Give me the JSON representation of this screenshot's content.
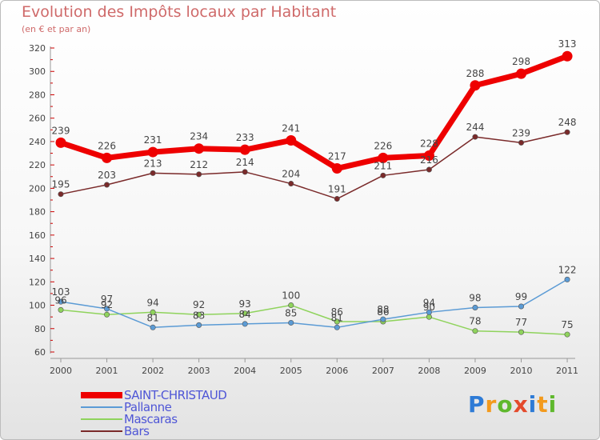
{
  "title": "Evolution des Impôts locaux par Habitant",
  "subtitle": "(en € et par an)",
  "logo": {
    "text": "Proxiti",
    "colors": [
      "#2e7bd6",
      "#f39a1d",
      "#5fb82d",
      "#e44a2c",
      "#2e7bd6",
      "#f39a1d",
      "#5fb82d"
    ]
  },
  "chart_data": {
    "type": "line",
    "x": [
      "2000",
      "2001",
      "2002",
      "2003",
      "2004",
      "2005",
      "2006",
      "2007",
      "2008",
      "2009",
      "2010",
      "2011"
    ],
    "ylim": [
      60,
      320
    ],
    "yticks": [
      60,
      80,
      100,
      120,
      140,
      160,
      180,
      200,
      220,
      240,
      260,
      280,
      300,
      320
    ],
    "grid": false,
    "legend_position": "bottom-left",
    "series": [
      {
        "name": "SAINT-CHRISTAUD",
        "color": "#ee0000",
        "values": [
          239,
          226,
          231,
          234,
          233,
          241,
          217,
          226,
          228,
          288,
          298,
          313
        ]
      },
      {
        "name": "Pallanne",
        "color": "#5b9bd5",
        "values": [
          103,
          97,
          81,
          83,
          84,
          85,
          81,
          88,
          94,
          98,
          99,
          122
        ]
      },
      {
        "name": "Mascaras",
        "color": "#8fd35c",
        "values": [
          96,
          92,
          94,
          92,
          93,
          100,
          86,
          86,
          90,
          78,
          77,
          75
        ]
      },
      {
        "name": "Bars",
        "color": "#7a2a2a",
        "values": [
          195,
          203,
          213,
          212,
          214,
          204,
          191,
          211,
          216,
          244,
          239,
          248
        ]
      }
    ]
  }
}
